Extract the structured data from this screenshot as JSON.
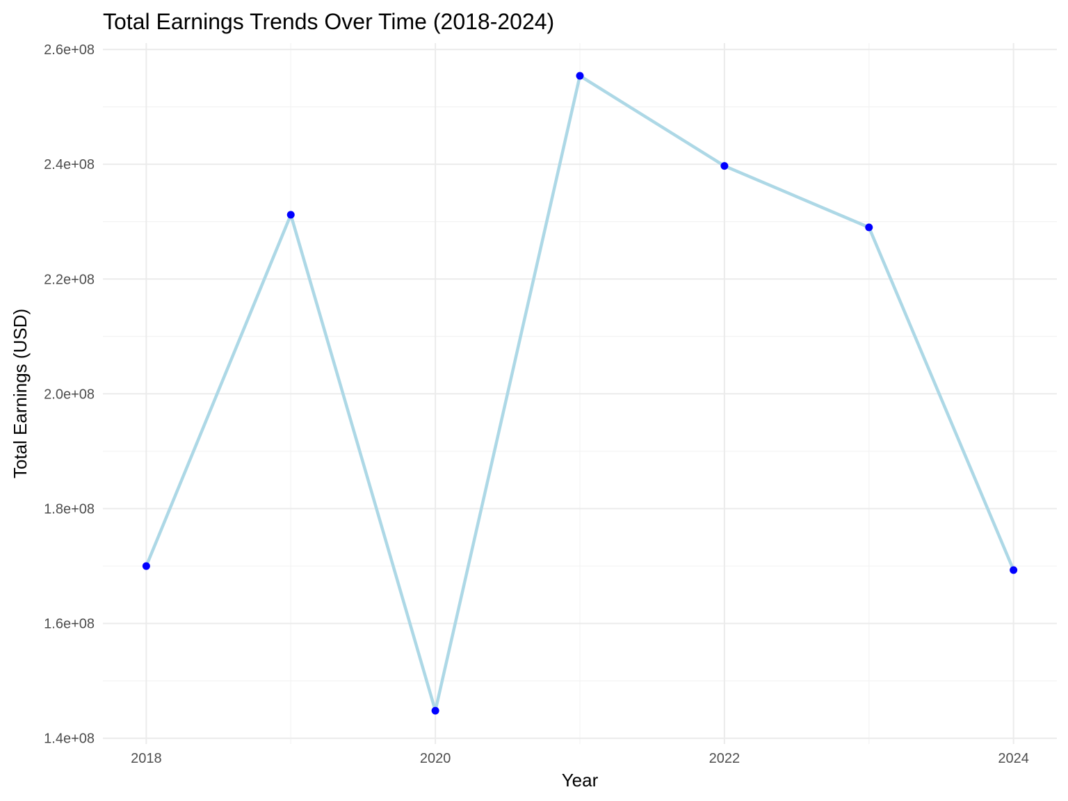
{
  "chart_data": {
    "type": "line",
    "title": "Total Earnings Trends Over Time (2018-2024)",
    "xlabel": "Year",
    "ylabel": "Total Earnings (USD)",
    "x": [
      2018,
      2019,
      2020,
      2021,
      2022,
      2023,
      2024
    ],
    "series": [
      {
        "values": [
          170000000,
          231200000,
          144800000,
          255400000,
          239700000,
          229000000,
          169300000
        ]
      }
    ],
    "xlim": [
      2017.7,
      2024.3
    ],
    "ylim": [
      139000000,
      261100000
    ],
    "x_ticks": [
      2018,
      2020,
      2022,
      2024
    ],
    "x_tick_labels": [
      "2018",
      "2020",
      "2022",
      "2024"
    ],
    "y_ticks": [
      140000000,
      160000000,
      180000000,
      200000000,
      220000000,
      240000000,
      260000000
    ],
    "y_tick_labels": [
      "1.4e+08",
      "1.6e+08",
      "1.8e+08",
      "2.0e+08",
      "2.2e+08",
      "2.4e+08",
      "2.6e+08"
    ],
    "grid": true,
    "legend": "none",
    "colors": {
      "line": "#add8e6",
      "point": "#0000ff",
      "grid_major": "#ebebeb",
      "grid_minor": "#f3f3f3",
      "background": "#ffffff"
    }
  }
}
